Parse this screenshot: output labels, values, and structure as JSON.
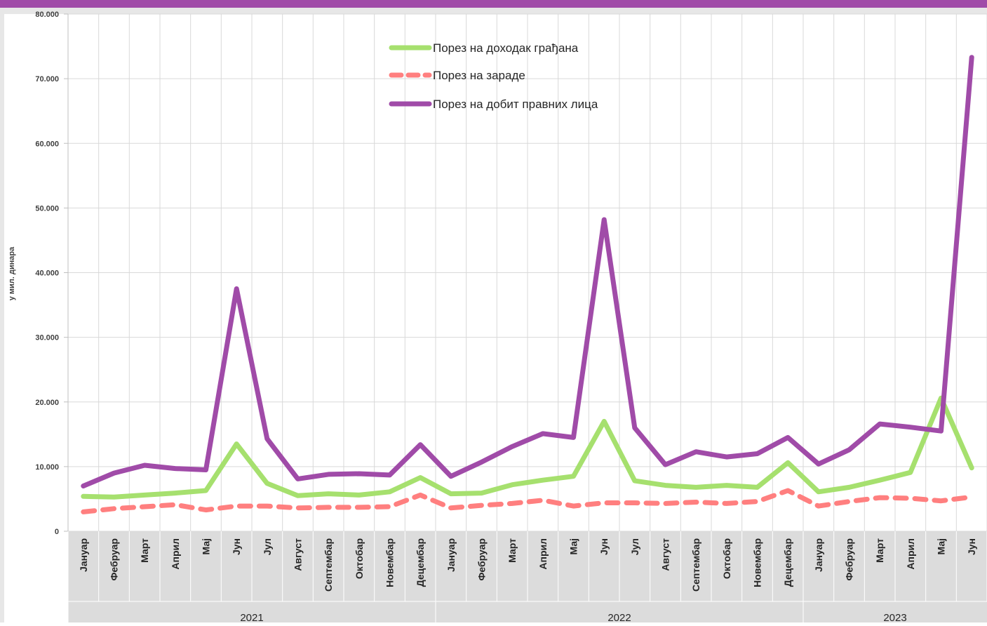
{
  "chart_data": {
    "type": "line",
    "ylabel": "у мил. динара",
    "ylim": [
      0,
      80000
    ],
    "y_ticks": [
      "0",
      "10.000",
      "20.000",
      "30.000",
      "40.000",
      "50.000",
      "60.000",
      "70.000",
      "80.000"
    ],
    "grid": true,
    "legend_position": "top-center",
    "categories": [
      "Јануар",
      "Фебруар",
      "Март",
      "Април",
      "Мај",
      "Јун",
      "Јул",
      "Август",
      "Септембар",
      "Октобар",
      "Новембар",
      "Децембар",
      "Јануар",
      "Фебруар",
      "Март",
      "Април",
      "Мај",
      "Јун",
      "Јул",
      "Август",
      "Септембар",
      "Октобар",
      "Новембар",
      "Децембар",
      "Јануар",
      "Фебруар",
      "Март",
      "Април",
      "Мај",
      "Јун"
    ],
    "groups": [
      {
        "label": "2021",
        "count": 12
      },
      {
        "label": "2022",
        "count": 12
      },
      {
        "label": "2023",
        "count": 6
      }
    ],
    "series": [
      {
        "name": "Порез на доходак грађана",
        "color": "#A6E06E",
        "dash": "solid",
        "values": [
          5400,
          5300,
          5600,
          5900,
          6300,
          13500,
          7400,
          5500,
          5800,
          5600,
          6100,
          8300,
          5800,
          5900,
          7200,
          7900,
          8500,
          17000,
          7800,
          7100,
          6800,
          7100,
          6800,
          10600,
          6100,
          6800,
          7900,
          9100,
          20600,
          9800
        ]
      },
      {
        "name": "Порез на зараде",
        "color": "#FF7F7F",
        "dash": "dashed",
        "values": [
          3000,
          3500,
          3800,
          4100,
          3300,
          3900,
          3900,
          3600,
          3700,
          3700,
          3800,
          5600,
          3600,
          4000,
          4300,
          4800,
          3900,
          4400,
          4400,
          4300,
          4500,
          4300,
          4600,
          6300,
          3900,
          4600,
          5200,
          5100,
          4700,
          5300
        ]
      },
      {
        "name": "Порез на добит правних лица",
        "color": "#A04BA8",
        "dash": "solid",
        "values": [
          7000,
          9000,
          10200,
          9700,
          9500,
          37500,
          14300,
          8100,
          8800,
          8900,
          8700,
          13400,
          8500,
          10700,
          13100,
          15100,
          14500,
          48200,
          16000,
          10300,
          12300,
          11500,
          12000,
          14500,
          10400,
          12600,
          16600,
          16100,
          15500,
          73300
        ]
      }
    ]
  }
}
